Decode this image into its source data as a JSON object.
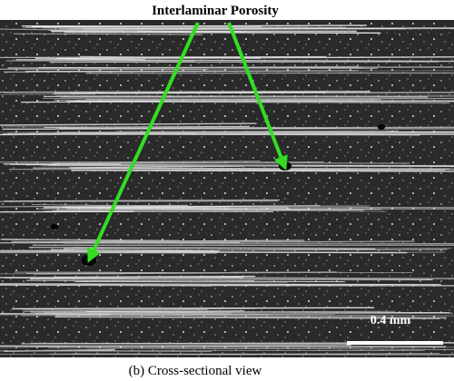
{
  "title": "Interlaminar Porosity",
  "scale_bar": {
    "label": "0.4 mm"
  },
  "caption": "(b) Cross-sectional view"
}
